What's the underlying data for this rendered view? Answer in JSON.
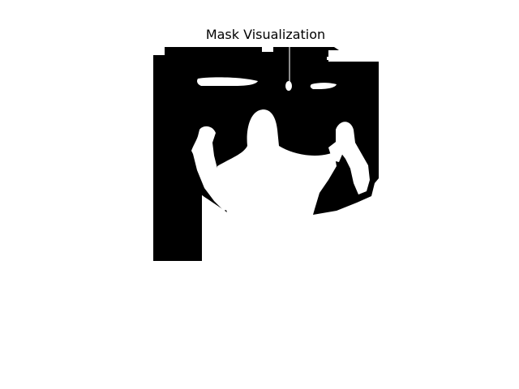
{
  "figure": {
    "title": "Mask Visualization"
  },
  "mask": {
    "foreground_color": "#ffffff",
    "background_color": "#000000"
  }
}
